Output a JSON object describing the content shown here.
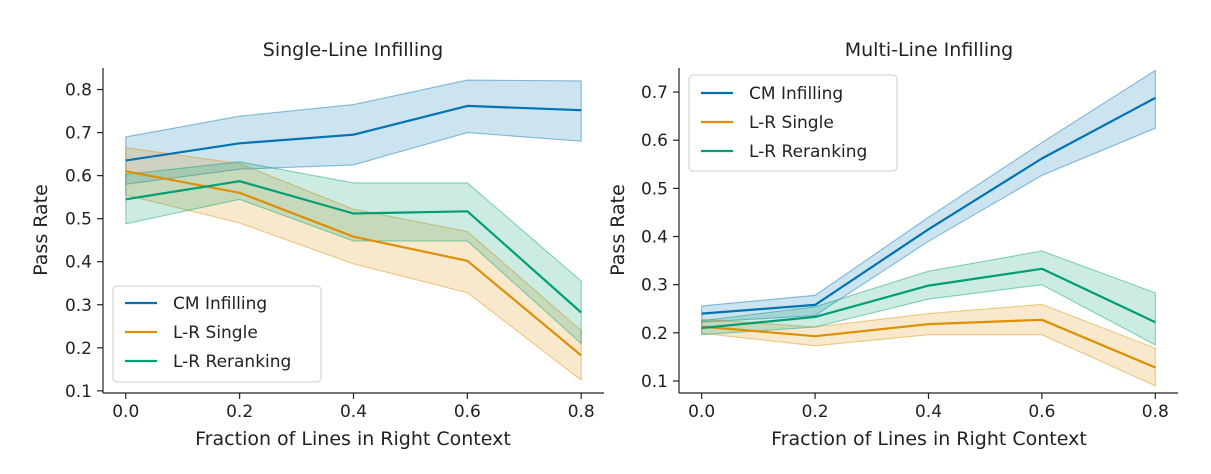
{
  "chart_data": [
    {
      "type": "line",
      "title": "Single-Line Infilling",
      "xlabel": "Fraction of Lines in Right Context",
      "ylabel": "Pass Rate",
      "x": [
        0.0,
        0.2,
        0.4,
        0.6,
        0.8
      ],
      "xlim": [
        -0.04,
        0.84
      ],
      "ylim": [
        0.095,
        0.85
      ],
      "xticks": [
        {
          "value": 0.0,
          "label": "0.0"
        },
        {
          "value": 0.2,
          "label": "0.2"
        },
        {
          "value": 0.4,
          "label": "0.4"
        },
        {
          "value": 0.6,
          "label": "0.6"
        },
        {
          "value": 0.8,
          "label": "0.8"
        }
      ],
      "yticks": [
        {
          "value": 0.1,
          "label": "0.1"
        },
        {
          "value": 0.2,
          "label": "0.2"
        },
        {
          "value": 0.3,
          "label": "0.3"
        },
        {
          "value": 0.4,
          "label": "0.4"
        },
        {
          "value": 0.5,
          "label": "0.5"
        },
        {
          "value": 0.6,
          "label": "0.6"
        },
        {
          "value": 0.7,
          "label": "0.7"
        },
        {
          "value": 0.8,
          "label": "0.8"
        }
      ],
      "legend_position": "lower-left",
      "series": [
        {
          "name": "CM Infilling",
          "color": "#0173b2",
          "values": [
            0.635,
            0.675,
            0.695,
            0.762,
            0.752
          ],
          "lower": [
            0.58,
            0.615,
            0.625,
            0.7,
            0.68
          ],
          "upper": [
            0.69,
            0.738,
            0.765,
            0.822,
            0.82
          ]
        },
        {
          "name": "L-R Single",
          "color": "#de8f05",
          "values": [
            0.61,
            0.56,
            0.458,
            0.402,
            0.182
          ],
          "lower": [
            0.555,
            0.49,
            0.395,
            0.328,
            0.125
          ],
          "upper": [
            0.665,
            0.628,
            0.522,
            0.47,
            0.24
          ]
        },
        {
          "name": "L-R Reranking",
          "color": "#029e73",
          "values": [
            0.545,
            0.587,
            0.512,
            0.517,
            0.282
          ],
          "lower": [
            0.488,
            0.545,
            0.448,
            0.448,
            0.21
          ],
          "upper": [
            0.603,
            0.632,
            0.583,
            0.583,
            0.355
          ]
        }
      ]
    },
    {
      "type": "line",
      "title": "Multi-Line Infilling",
      "xlabel": "Fraction of Lines in Right Context",
      "ylabel": "Pass Rate",
      "x": [
        0.0,
        0.2,
        0.4,
        0.6,
        0.8
      ],
      "xlim": [
        -0.04,
        0.84
      ],
      "ylim": [
        0.075,
        0.75
      ],
      "xticks": [
        {
          "value": 0.0,
          "label": "0.0"
        },
        {
          "value": 0.2,
          "label": "0.2"
        },
        {
          "value": 0.4,
          "label": "0.4"
        },
        {
          "value": 0.6,
          "label": "0.6"
        },
        {
          "value": 0.8,
          "label": "0.8"
        }
      ],
      "yticks": [
        {
          "value": 0.1,
          "label": "0.1"
        },
        {
          "value": 0.2,
          "label": "0.2"
        },
        {
          "value": 0.3,
          "label": "0.3"
        },
        {
          "value": 0.4,
          "label": "0.4"
        },
        {
          "value": 0.5,
          "label": "0.5"
        },
        {
          "value": 0.6,
          "label": "0.6"
        },
        {
          "value": 0.7,
          "label": "0.7"
        }
      ],
      "legend_position": "upper-left",
      "series": [
        {
          "name": "CM Infilling",
          "color": "#0173b2",
          "values": [
            0.24,
            0.258,
            0.415,
            0.562,
            0.688
          ],
          "lower": [
            0.222,
            0.236,
            0.39,
            0.527,
            0.625
          ],
          "upper": [
            0.256,
            0.278,
            0.44,
            0.595,
            0.745
          ]
        },
        {
          "name": "L-R Single",
          "color": "#de8f05",
          "values": [
            0.213,
            0.193,
            0.218,
            0.227,
            0.128
          ],
          "lower": [
            0.199,
            0.173,
            0.196,
            0.196,
            0.09
          ],
          "upper": [
            0.228,
            0.212,
            0.24,
            0.259,
            0.168
          ]
        },
        {
          "name": "L-R Reranking",
          "color": "#029e73",
          "values": [
            0.21,
            0.233,
            0.298,
            0.333,
            0.222
          ],
          "lower": [
            0.196,
            0.212,
            0.27,
            0.3,
            0.175
          ],
          "upper": [
            0.225,
            0.254,
            0.328,
            0.37,
            0.283
          ]
        }
      ]
    }
  ]
}
